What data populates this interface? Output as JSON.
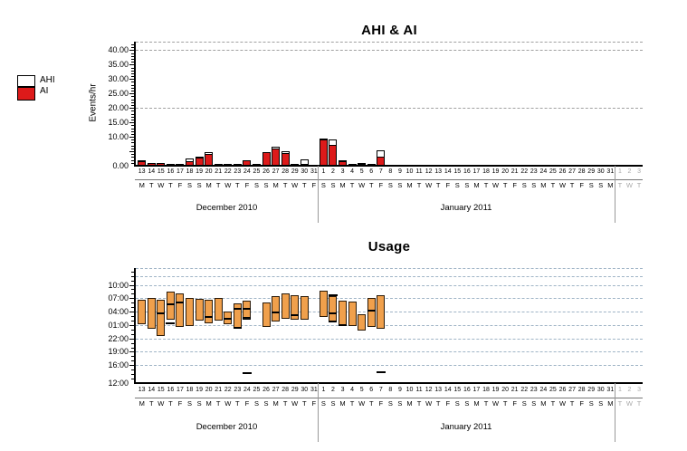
{
  "chart_data": {
    "charts": [
      {
        "type": "bar",
        "title": "AHI & AI",
        "ylabel": "Events/hr",
        "ylim": [
          0,
          43
        ],
        "yticks": [
          {
            "v": 40,
            "t": "40.00"
          },
          {
            "v": 35,
            "t": "35.00"
          },
          {
            "v": 30,
            "t": "30.00"
          },
          {
            "v": 25,
            "t": "25.00"
          },
          {
            "v": 20,
            "t": "20.00"
          },
          {
            "v": 15,
            "t": "15.00"
          },
          {
            "v": 10,
            "t": "10.00"
          },
          {
            "v": 0,
            "t": "0.00"
          }
        ],
        "grid_values": [
          20,
          40
        ],
        "legend": [
          {
            "label": "AHI",
            "color": "#FFFFFF"
          },
          {
            "label": "AI",
            "color": "#DD1A1A"
          }
        ]
      },
      {
        "type": "range-bar",
        "title": "Usage",
        "y_axis_note": "time of day, noon to noon",
        "yticks": [
          "10:00",
          "07:00",
          "04:00",
          "01:00",
          "22:00",
          "19:00",
          "16:00",
          "12:00"
        ],
        "grid_times": [
          "16:00",
          "19:00",
          "22:00",
          "01:00",
          "04:00",
          "07:00",
          "10:00",
          "12:00"
        ]
      }
    ],
    "months": [
      {
        "label": "December 2010"
      },
      {
        "label": "January 2011"
      },
      {
        "label": ""
      }
    ],
    "days": [
      {
        "d": "13",
        "w": "M",
        "m": 0,
        "ahi": 1.8,
        "ai": 1.7,
        "use": [
          [
            "01:10",
            "06:35"
          ]
        ]
      },
      {
        "d": "14",
        "w": "T",
        "m": 0,
        "ahi": 0.9,
        "ai": 0.8,
        "use": [
          [
            "00:10",
            "07:00"
          ]
        ]
      },
      {
        "d": "15",
        "w": "W",
        "m": 0,
        "ahi": 0.9,
        "ai": 0.8,
        "use": [
          [
            "22:30",
            "06:45"
          ]
        ],
        "div": [
          "03:45"
        ]
      },
      {
        "d": "16",
        "w": "T",
        "m": 0,
        "ahi": 0.3,
        "ai": 0.2,
        "use": [
          [
            "02:15",
            "08:30"
          ]
        ],
        "div": [
          "05:45"
        ],
        "mark": [
          "01:35"
        ]
      },
      {
        "d": "17",
        "w": "F",
        "m": 0,
        "ahi": 0.6,
        "ai": 0.5,
        "use": [
          [
            "00:30",
            "08:05"
          ]
        ],
        "div": [
          "06:10"
        ]
      },
      {
        "d": "18",
        "w": "S",
        "m": 0,
        "ahi": 2.4,
        "ai": 1.7,
        "use": [
          [
            "00:50",
            "07:05"
          ]
        ]
      },
      {
        "d": "19",
        "w": "S",
        "m": 0,
        "ahi": 3.0,
        "ai": 2.9,
        "use": [
          [
            "02:00",
            "06:50"
          ]
        ]
      },
      {
        "d": "20",
        "w": "M",
        "m": 0,
        "ahi": 4.6,
        "ai": 4.2,
        "use": [
          [
            "01:20",
            "06:35"
          ]
        ],
        "div": [
          "02:55"
        ]
      },
      {
        "d": "21",
        "w": "T",
        "m": 0,
        "ahi": 0.3,
        "ai": 0.2,
        "use": [
          [
            "02:00",
            "07:05"
          ]
        ]
      },
      {
        "d": "22",
        "w": "W",
        "m": 0,
        "ahi": 0.3,
        "ai": 0.2,
        "use": [
          [
            "01:10",
            "04:05"
          ]
        ],
        "div": [
          "02:40"
        ]
      },
      {
        "d": "23",
        "w": "T",
        "m": 0,
        "ahi": 0.4,
        "ai": 0.3,
        "use": [
          [
            "00:10",
            "05:45"
          ]
        ],
        "div": [
          "04:45"
        ],
        "black": [
          [
            "00:10",
            "00:40"
          ]
        ]
      },
      {
        "d": "24",
        "w": "F",
        "m": 0,
        "ahi": 2.0,
        "ai": 1.9,
        "use": [
          [
            "02:10",
            "06:25"
          ]
        ],
        "div": [
          "04:50"
        ],
        "mark": [
          "14:30"
        ],
        "black": [
          [
            "02:10",
            "02:45"
          ]
        ]
      },
      {
        "d": "25",
        "w": "S",
        "m": 0,
        "ahi": 0.3,
        "ai": 0.2
      },
      {
        "d": "26",
        "w": "S",
        "m": 0,
        "ahi": 4.8,
        "ai": 4.6,
        "use": [
          [
            "00:30",
            "06:05"
          ]
        ]
      },
      {
        "d": "27",
        "w": "M",
        "m": 0,
        "ahi": 6.7,
        "ai": 5.9,
        "use": [
          [
            "01:50",
            "07:30"
          ]
        ],
        "div": [
          "04:05"
        ]
      },
      {
        "d": "28",
        "w": "T",
        "m": 0,
        "ahi": 5.0,
        "ai": 4.4,
        "use": [
          [
            "02:30",
            "08:10"
          ]
        ]
      },
      {
        "d": "29",
        "w": "W",
        "m": 0,
        "ahi": 0.3,
        "ai": 0.2,
        "use": [
          [
            "02:10",
            "07:45"
          ]
        ],
        "div": [
          "03:25"
        ]
      },
      {
        "d": "30",
        "w": "T",
        "m": 0,
        "ahi": 2.2,
        "ai": 0.3,
        "use": [
          [
            "02:10",
            "07:30"
          ]
        ]
      },
      {
        "d": "31",
        "w": "F",
        "m": 0,
        "ahi": 0,
        "ai": 0
      },
      {
        "d": "1",
        "w": "S",
        "m": 1,
        "ahi": 9.3,
        "ai": 9.2,
        "use": [
          [
            "02:45",
            "08:40"
          ]
        ]
      },
      {
        "d": "2",
        "w": "S",
        "m": 1,
        "ahi": 9.0,
        "ai": 7.3,
        "use": [
          [
            "01:30",
            "07:25"
          ]
        ],
        "div": [
          "03:45"
        ],
        "mark": [
          "07:55"
        ],
        "black": [
          [
            "01:30",
            "02:05"
          ]
        ]
      },
      {
        "d": "3",
        "w": "M",
        "m": 1,
        "ahi": 2.0,
        "ai": 1.5,
        "use": [
          [
            "00:50",
            "06:25"
          ]
        ],
        "div": [
          "01:05"
        ]
      },
      {
        "d": "4",
        "w": "T",
        "m": 1,
        "ahi": 0.7,
        "ai": 0.2,
        "use": [
          [
            "00:50",
            "06:15"
          ]
        ]
      },
      {
        "d": "5",
        "w": "W",
        "m": 1,
        "ahi": 0.9,
        "ai": 0.3,
        "use": [
          [
            "23:50",
            "03:25"
          ]
        ]
      },
      {
        "d": "6",
        "w": "T",
        "m": 1,
        "ahi": 0.7,
        "ai": 0.2,
        "use": [
          [
            "00:30",
            "07:05"
          ]
        ],
        "div": [
          "04:25"
        ]
      },
      {
        "d": "7",
        "w": "F",
        "m": 1,
        "ahi": 5.3,
        "ai": 3.2,
        "use": [
          [
            "00:10",
            "07:45"
          ]
        ],
        "mark": [
          "14:40"
        ]
      },
      {
        "d": "8",
        "w": "S",
        "m": 1,
        "ahi": 0,
        "ai": 0
      },
      {
        "d": "9",
        "w": "S",
        "m": 1,
        "ahi": 0,
        "ai": 0
      },
      {
        "d": "10",
        "w": "M",
        "m": 1,
        "ahi": 0,
        "ai": 0
      },
      {
        "d": "11",
        "w": "T",
        "m": 1,
        "ahi": 0,
        "ai": 0
      },
      {
        "d": "12",
        "w": "W",
        "m": 1,
        "ahi": 0,
        "ai": 0
      },
      {
        "d": "13",
        "w": "T",
        "m": 1,
        "ahi": 0,
        "ai": 0
      },
      {
        "d": "14",
        "w": "F",
        "m": 1,
        "ahi": 0,
        "ai": 0
      },
      {
        "d": "15",
        "w": "S",
        "m": 1,
        "ahi": 0,
        "ai": 0
      },
      {
        "d": "16",
        "w": "S",
        "m": 1,
        "ahi": 0,
        "ai": 0
      },
      {
        "d": "17",
        "w": "M",
        "m": 1,
        "ahi": 0,
        "ai": 0
      },
      {
        "d": "18",
        "w": "T",
        "m": 1,
        "ahi": 0,
        "ai": 0
      },
      {
        "d": "19",
        "w": "W",
        "m": 1,
        "ahi": 0,
        "ai": 0
      },
      {
        "d": "20",
        "w": "T",
        "m": 1,
        "ahi": 0,
        "ai": 0
      },
      {
        "d": "21",
        "w": "F",
        "m": 1,
        "ahi": 0,
        "ai": 0
      },
      {
        "d": "22",
        "w": "S",
        "m": 1,
        "ahi": 0,
        "ai": 0
      },
      {
        "d": "23",
        "w": "S",
        "m": 1,
        "ahi": 0,
        "ai": 0
      },
      {
        "d": "24",
        "w": "M",
        "m": 1,
        "ahi": 0,
        "ai": 0
      },
      {
        "d": "25",
        "w": "T",
        "m": 1,
        "ahi": 0,
        "ai": 0
      },
      {
        "d": "26",
        "w": "W",
        "m": 1,
        "ahi": 0,
        "ai": 0
      },
      {
        "d": "27",
        "w": "T",
        "m": 1,
        "ahi": 0,
        "ai": 0
      },
      {
        "d": "28",
        "w": "F",
        "m": 1,
        "ahi": 0,
        "ai": 0
      },
      {
        "d": "29",
        "w": "S",
        "m": 1,
        "ahi": 0,
        "ai": 0
      },
      {
        "d": "30",
        "w": "S",
        "m": 1,
        "ahi": 0,
        "ai": 0
      },
      {
        "d": "31",
        "w": "M",
        "m": 1,
        "ahi": 0,
        "ai": 0
      },
      {
        "d": "1",
        "w": "T",
        "m": 2,
        "future": true,
        "ahi": 0,
        "ai": 0
      },
      {
        "d": "2",
        "w": "W",
        "m": 2,
        "future": true,
        "ahi": 0,
        "ai": 0
      },
      {
        "d": "3",
        "w": "T",
        "m": 2,
        "future": true,
        "ahi": 0,
        "ai": 0
      }
    ]
  },
  "colors": {
    "ai_red": "#DD1A1A",
    "ahi_white": "#FFFFFF",
    "usage_orange": "#F0A04C",
    "usage_border": "#2B1A08",
    "grid_ahi": "#A0A0A0",
    "grid_usage": "#9FB4C6",
    "axis": "#000000",
    "date_underline": "#777777",
    "month_separator": "#999999",
    "future_text": "#A9A9A9"
  }
}
